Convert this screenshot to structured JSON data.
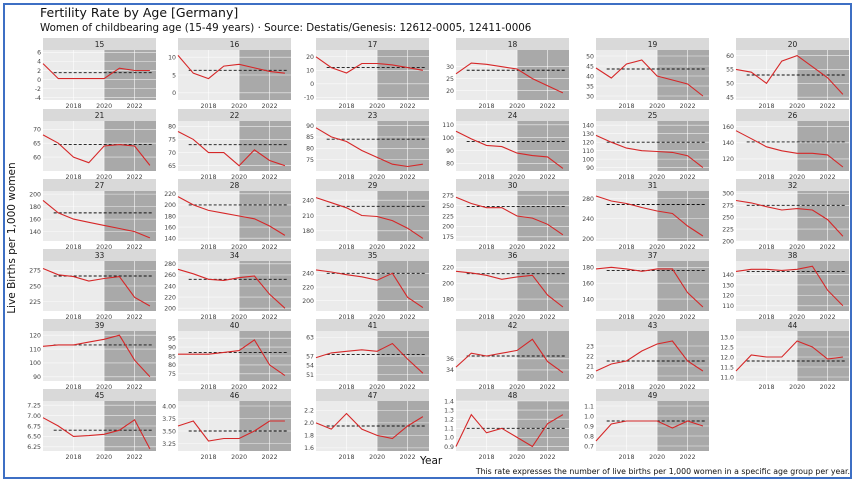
{
  "title": "Fertility Rate by Age [Germany]",
  "subtitle": "Women of childbearing age (15-49 years) · Source: Destatis/Genesis: 12612-0005, 12411-0006",
  "caption": "This rate expresses the number of live births per 1,000 women in a specific age group per year.",
  "colors": {
    "line": "#d62728",
    "panel": "#ebebeb",
    "shade": "#a9a9a9",
    "strip": "#d9d9d9",
    "grid": "#ffffff",
    "frame": "#3d6fc4"
  },
  "chart_data": {
    "type": "line",
    "facet": "small multiples by age",
    "xlabel": "Year",
    "ylabel": "Live Births per 1,000 women",
    "x": [
      2016,
      2017,
      2018,
      2019,
      2020,
      2021,
      2022,
      2023
    ],
    "xticks": [
      "2018",
      "2020",
      "2022"
    ],
    "shaded_period": [
      2020,
      2023
    ],
    "dashed_line": "mean",
    "panels": [
      {
        "label": "15",
        "ylim": [
          -4.5,
          6.5
        ],
        "yticks": [
          "6",
          "4",
          "2",
          "0",
          "-2",
          "-4"
        ],
        "ytick_values": [
          6,
          4,
          2,
          0,
          -2,
          -4
        ],
        "mean": 1.5,
        "values": [
          3.5,
          0.2,
          0.2,
          0.2,
          0.2,
          2.5,
          2.0,
          2.0
        ]
      },
      {
        "label": "16",
        "ylim": [
          -2,
          12
        ],
        "yticks": [
          "10",
          "5",
          "0"
        ],
        "ytick_values": [
          10,
          5,
          0
        ],
        "mean": 6.3,
        "values": [
          10.5,
          5.5,
          4.0,
          7.5,
          8.0,
          7.0,
          6.0,
          5.5
        ]
      },
      {
        "label": "17",
        "ylim": [
          -12,
          25
        ],
        "yticks": [
          "20",
          "10",
          "0",
          "-10"
        ],
        "ytick_values": [
          20,
          10,
          0,
          -10
        ],
        "mean": 12.0,
        "values": [
          20,
          12,
          8,
          15,
          15,
          14,
          12,
          10
        ]
      },
      {
        "label": "18",
        "ylim": [
          16,
          37
        ],
        "yticks": [
          "30",
          "25",
          "20"
        ],
        "ytick_values": [
          30,
          25,
          20
        ],
        "mean": 28.5,
        "values": [
          27,
          31.5,
          31,
          30,
          29,
          25,
          22,
          19
        ]
      },
      {
        "label": "19",
        "ylim": [
          28,
          53
        ],
        "yticks": [
          "50",
          "45",
          "40",
          "35",
          "30"
        ],
        "ytick_values": [
          50,
          45,
          40,
          35,
          30
        ],
        "mean": 43.5,
        "values": [
          44,
          39,
          46,
          48,
          40,
          38,
          36,
          30
        ]
      },
      {
        "label": "20",
        "ylim": [
          44,
          62
        ],
        "yticks": [
          "60",
          "55",
          "50",
          "45"
        ],
        "ytick_values": [
          60,
          55,
          50,
          45
        ],
        "mean": 53.0,
        "values": [
          55,
          54,
          50,
          58,
          60,
          56,
          52,
          46
        ]
      },
      {
        "label": "21",
        "ylim": [
          55,
          73
        ],
        "yticks": [
          "70",
          "65",
          "60"
        ],
        "ytick_values": [
          70,
          65,
          60
        ],
        "mean": 64.5,
        "values": [
          68,
          65,
          60,
          58,
          64,
          64.5,
          64,
          57
        ]
      },
      {
        "label": "22",
        "ylim": [
          63,
          82
        ],
        "yticks": [
          "80",
          "75",
          "70",
          "65"
        ],
        "ytick_values": [
          80,
          75,
          70,
          65
        ],
        "mean": 73.0,
        "values": [
          78,
          75,
          70,
          70,
          65,
          71,
          67,
          65
        ]
      },
      {
        "label": "23",
        "ylim": [
          70,
          92
        ],
        "yticks": [
          "90",
          "85",
          "80",
          "75"
        ],
        "ytick_values": [
          90,
          85,
          80,
          75
        ],
        "mean": 84.0,
        "values": [
          89,
          85,
          83,
          79,
          76,
          73,
          72,
          73
        ]
      },
      {
        "label": "24",
        "ylim": [
          74,
          113
        ],
        "yticks": [
          "110",
          "100",
          "90",
          "80"
        ],
        "ytick_values": [
          110,
          100,
          90,
          80
        ],
        "mean": 97.0,
        "values": [
          105,
          99,
          94,
          93,
          88,
          86,
          85,
          76
        ]
      },
      {
        "label": "25",
        "ylim": [
          86,
          145
        ],
        "yticks": [
          "140",
          "130",
          "120",
          "110",
          "100",
          "90"
        ],
        "ytick_values": [
          140,
          130,
          120,
          110,
          100,
          90
        ],
        "mean": 120.0,
        "values": [
          128,
          120,
          113,
          110,
          109,
          108,
          104,
          90
        ]
      },
      {
        "label": "26",
        "ylim": [
          105,
          167
        ],
        "yticks": [
          "160",
          "140",
          "120"
        ],
        "ytick_values": [
          160,
          140,
          120
        ],
        "mean": 141.0,
        "values": [
          155,
          145,
          135,
          130,
          127,
          127,
          125,
          110
        ]
      },
      {
        "label": "27",
        "ylim": [
          125,
          205
        ],
        "yticks": [
          "200",
          "180",
          "160",
          "140"
        ],
        "ytick_values": [
          200,
          180,
          160,
          140
        ],
        "mean": 170.0,
        "values": [
          190,
          170,
          160,
          155,
          150,
          145,
          140,
          130
        ]
      },
      {
        "label": "28",
        "ylim": [
          135,
          225
        ],
        "yticks": [
          "220",
          "200",
          "180",
          "160",
          "140"
        ],
        "ytick_values": [
          220,
          200,
          180,
          160,
          140
        ],
        "mean": 200.0,
        "values": [
          215,
          200,
          190,
          185,
          180,
          175,
          162,
          145
        ]
      },
      {
        "label": "29",
        "ylim": [
          160,
          258
        ],
        "yticks": [
          "240",
          "210",
          "180"
        ],
        "ytick_values": [
          240,
          210,
          180
        ],
        "mean": 228.0,
        "values": [
          245,
          235,
          225,
          210,
          208,
          200,
          185,
          165
        ]
      },
      {
        "label": "30",
        "ylim": [
          165,
          285
        ],
        "yticks": [
          "275",
          "250",
          "225",
          "200",
          "175"
        ],
        "ytick_values": [
          275,
          250,
          225,
          200,
          175
        ],
        "mean": 248.0,
        "values": [
          270,
          255,
          245,
          245,
          225,
          220,
          205,
          180
        ]
      },
      {
        "label": "31",
        "ylim": [
          195,
          295
        ],
        "yticks": [
          "280",
          "240",
          "200"
        ],
        "ytick_values": [
          280,
          240,
          200
        ],
        "mean": 268.0,
        "values": [
          285,
          275,
          270,
          262,
          255,
          250,
          225,
          205
        ]
      },
      {
        "label": "32",
        "ylim": [
          200,
          305
        ],
        "yticks": [
          "300",
          "275",
          "250",
          "225",
          "200"
        ],
        "ytick_values": [
          300,
          275,
          250,
          225,
          200
        ],
        "mean": 275.0,
        "values": [
          285,
          280,
          272,
          265,
          268,
          265,
          245,
          210
        ]
      },
      {
        "label": "33",
        "ylim": [
          210,
          290
        ],
        "yticks": [
          "275",
          "250",
          "225"
        ],
        "ytick_values": [
          275,
          250,
          225
        ],
        "mean": 266.0,
        "values": [
          278,
          268,
          265,
          258,
          262,
          265,
          232,
          218
        ]
      },
      {
        "label": "34",
        "ylim": [
          195,
          285
        ],
        "yticks": [
          "280",
          "260",
          "240",
          "220",
          "200"
        ],
        "ytick_values": [
          280,
          260,
          240,
          220,
          200
        ],
        "mean": 252.0,
        "values": [
          270,
          262,
          252,
          250,
          255,
          258,
          225,
          200
        ]
      },
      {
        "label": "35",
        "ylim": [
          185,
          258
        ],
        "yticks": [
          "240",
          "220",
          "200"
        ],
        "ytick_values": [
          240,
          220,
          200
        ],
        "mean": 240.0,
        "values": [
          245,
          242,
          238,
          235,
          230,
          240,
          205,
          190
        ]
      },
      {
        "label": "36",
        "ylim": [
          165,
          228
        ],
        "yticks": [
          "220",
          "200",
          "180"
        ],
        "ytick_values": [
          220,
          200,
          180
        ],
        "mean": 212.0,
        "values": [
          215,
          213,
          210,
          205,
          208,
          210,
          185,
          170
        ]
      },
      {
        "label": "37",
        "ylim": [
          125,
          188
        ],
        "yticks": [
          "180",
          "160",
          "140"
        ],
        "ytick_values": [
          180,
          160,
          140
        ],
        "mean": 176.0,
        "values": [
          178,
          180,
          178,
          175,
          178,
          178,
          148,
          130
        ]
      },
      {
        "label": "38",
        "ylim": [
          105,
          153
        ],
        "yticks": [
          "140",
          "130",
          "120",
          "110"
        ],
        "ytick_values": [
          140,
          130,
          120,
          110
        ],
        "mean": 143.0,
        "values": [
          143,
          145,
          145,
          144,
          145,
          148,
          125,
          110
        ]
      },
      {
        "label": "39",
        "ylim": [
          87,
          123
        ],
        "yticks": [
          "120",
          "110",
          "100",
          "90"
        ],
        "ytick_values": [
          120,
          110,
          100,
          90
        ],
        "mean": 113.0,
        "values": [
          112,
          113,
          113,
          115,
          117,
          120,
          102,
          90
        ]
      },
      {
        "label": "40",
        "ylim": [
          71,
          99
        ],
        "yticks": [
          "95",
          "90",
          "85",
          "80",
          "75"
        ],
        "ytick_values": [
          95,
          90,
          85,
          80,
          75
        ],
        "mean": 87.0,
        "values": [
          86,
          86,
          86,
          87,
          88,
          94,
          80,
          74
        ]
      },
      {
        "label": "41",
        "ylim": [
          49,
          65
        ],
        "yticks": [
          "63",
          "57",
          "54",
          "51"
        ],
        "ytick_values": [
          63,
          57,
          54,
          51
        ],
        "mean": 57.5,
        "values": [
          56.5,
          58,
          58.5,
          59,
          58.5,
          61,
          56,
          51.5
        ]
      },
      {
        "label": "42",
        "ylim": [
          32,
          41
        ],
        "yticks": [
          "36",
          "34"
        ],
        "ytick_values": [
          36,
          34
        ],
        "mean": 36.5,
        "values": [
          34.5,
          37,
          36.5,
          37,
          37.5,
          39.5,
          35.5,
          33.5
        ]
      },
      {
        "label": "43",
        "ylim": [
          19.5,
          24.5
        ],
        "yticks": [
          "23",
          "22",
          "21",
          "20"
        ],
        "ytick_values": [
          23,
          22,
          21,
          20
        ],
        "mean": 21.5,
        "values": [
          20.5,
          21.2,
          21.5,
          22.5,
          23.2,
          23.5,
          21.5,
          20.5
        ]
      },
      {
        "label": "44",
        "ylim": [
          10.8,
          13.3
        ],
        "yticks": [
          "13.0",
          "12.5",
          "12.0",
          "11.5",
          "11.0"
        ],
        "ytick_values": [
          13.0,
          12.5,
          12.0,
          11.5,
          11.0
        ],
        "mean": 11.8,
        "values": [
          11.3,
          12.1,
          12.0,
          12.0,
          12.8,
          12.5,
          11.9,
          12.0
        ]
      },
      {
        "label": "45",
        "ylim": [
          6.15,
          7.35
        ],
        "yticks": [
          "7.25",
          "7.00",
          "6.75",
          "6.50",
          "6.25"
        ],
        "ytick_values": [
          7.25,
          7.0,
          6.75,
          6.5,
          6.25
        ],
        "mean": 6.65,
        "values": [
          6.95,
          6.75,
          6.5,
          6.52,
          6.55,
          6.65,
          6.9,
          6.2
        ]
      },
      {
        "label": "46",
        "ylim": [
          3.1,
          4.1
        ],
        "yticks": [
          "4.00",
          "3.75",
          "3.50",
          "3.25"
        ],
        "ytick_values": [
          4.0,
          3.75,
          3.5,
          3.25
        ],
        "mean": 3.5,
        "values": [
          3.6,
          3.7,
          3.3,
          3.35,
          3.35,
          3.5,
          3.7,
          3.7
        ]
      },
      {
        "label": "47",
        "ylim": [
          1.55,
          2.35
        ],
        "yticks": [
          "2.2",
          "2.0",
          "1.8",
          "1.6"
        ],
        "ytick_values": [
          2.2,
          2.0,
          1.8,
          1.6
        ],
        "mean": 1.95,
        "values": [
          2.0,
          1.9,
          2.15,
          1.9,
          1.8,
          1.75,
          1.95,
          2.1
        ]
      },
      {
        "label": "48",
        "ylim": [
          0.85,
          1.4
        ],
        "yticks": [
          "1.4",
          "1.3",
          "1.2",
          "1.1",
          "1.0",
          "0.9"
        ],
        "ytick_values": [
          1.4,
          1.3,
          1.2,
          1.1,
          1.0,
          0.9
        ],
        "mean": 1.1,
        "values": [
          0.9,
          1.25,
          1.05,
          1.1,
          1.0,
          0.9,
          1.15,
          1.25
        ]
      },
      {
        "label": "49",
        "ylim": [
          0.65,
          1.15
        ],
        "yticks": [
          "1.1",
          "1.0",
          "0.9",
          "0.8",
          "0.7"
        ],
        "ytick_values": [
          1.1,
          1.0,
          0.9,
          0.8,
          0.7
        ],
        "mean": 0.95,
        "values": [
          0.75,
          0.92,
          0.95,
          0.95,
          0.95,
          0.88,
          0.95,
          0.9
        ]
      }
    ]
  }
}
